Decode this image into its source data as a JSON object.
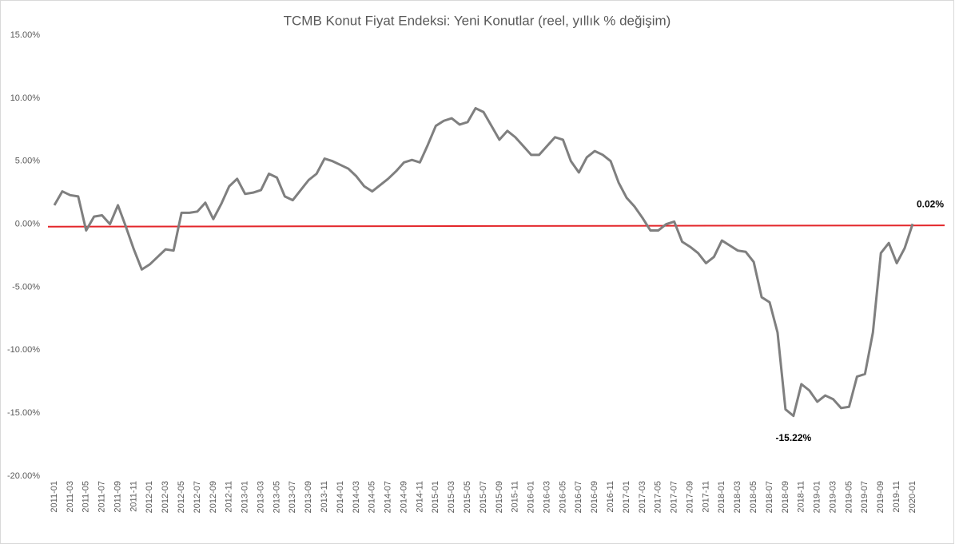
{
  "chart_data": {
    "type": "line",
    "title": "TCMB Konut Fiyat Endeksi: Yeni Konutlar (reel, yıllık % değişim)",
    "categories": [
      "2011-01",
      null,
      "2011-03",
      null,
      "2011-05",
      null,
      "2011-07",
      null,
      "2011-09",
      null,
      "2011-11",
      null,
      "2012-01",
      null,
      "2012-03",
      null,
      "2012-05",
      null,
      "2012-07",
      null,
      "2012-09",
      null,
      "2012-11",
      null,
      "2013-01",
      null,
      "2013-03",
      null,
      "2013-05",
      null,
      "2013-07",
      null,
      "2013-09",
      null,
      "2013-11",
      null,
      "2014-01",
      null,
      "2014-03",
      null,
      "2014-05",
      null,
      "2014-07",
      null,
      "2014-09",
      null,
      "2014-11",
      null,
      "2015-01",
      null,
      "2015-03",
      null,
      "2015-05",
      null,
      "2015-07",
      null,
      "2015-09",
      null,
      "2015-11",
      null,
      "2016-01",
      null,
      "2016-03",
      null,
      "2016-05",
      null,
      "2016-07",
      null,
      "2016-09",
      null,
      "2016-11",
      null,
      "2017-01",
      null,
      "2017-03",
      null,
      "2017-05",
      null,
      "2017-07",
      null,
      "2017-09",
      null,
      "2017-11",
      null,
      "2018-01",
      null,
      "2018-03",
      null,
      "2018-05",
      null,
      "2018-07",
      null,
      "2018-09",
      null,
      "2018-11",
      null,
      "2019-01",
      null,
      "2019-03",
      null,
      "2019-05",
      null,
      "2019-07",
      null,
      "2019-09",
      null,
      "2019-11",
      null,
      "2020-01"
    ],
    "series": [
      {
        "color": "#7f7f7f",
        "values": [
          1.5,
          2.6,
          2.3,
          2.2,
          -0.5,
          0.6,
          0.7,
          0.0,
          1.5,
          -0.2,
          -2.0,
          -3.6,
          -3.2,
          -2.6,
          -2.0,
          -2.1,
          0.9,
          0.9,
          1.0,
          1.7,
          0.4,
          1.6,
          3.0,
          3.6,
          2.4,
          2.5,
          2.7,
          4.0,
          3.7,
          2.2,
          1.9,
          2.7,
          3.5,
          4.0,
          5.2,
          5.0,
          4.7,
          4.4,
          3.8,
          3.0,
          2.6,
          3.1,
          3.6,
          4.2,
          4.9,
          5.1,
          4.9,
          6.3,
          7.8,
          8.2,
          8.4,
          7.9,
          8.1,
          9.2,
          8.9,
          7.8,
          6.7,
          7.4,
          6.9,
          6.2,
          5.5,
          5.5,
          6.2,
          6.9,
          6.7,
          5.0,
          4.1,
          5.3,
          5.8,
          5.5,
          5.0,
          3.3,
          2.1,
          1.4,
          0.5,
          -0.5,
          -0.5,
          0.0,
          0.2,
          -1.4,
          -1.8,
          -2.3,
          -3.1,
          -2.6,
          -1.3,
          -1.7,
          -2.1,
          -2.2,
          -3.0,
          -5.8,
          -6.2,
          -8.6,
          -14.7,
          -15.22,
          -12.7,
          -13.2,
          -14.1,
          -13.6,
          -13.9,
          -14.6,
          -14.5,
          -12.1,
          -11.9,
          -8.6,
          -2.3,
          -1.5,
          -3.1,
          -1.9,
          0.02
        ],
        "value_labels": [
          null,
          null,
          null,
          null,
          null,
          null,
          null,
          null,
          null,
          null,
          null,
          null,
          null,
          null,
          null,
          null,
          null,
          null,
          null,
          null,
          null,
          null,
          null,
          null,
          null,
          null,
          null,
          null,
          null,
          null,
          null,
          null,
          null,
          null,
          null,
          null,
          null,
          null,
          null,
          null,
          null,
          null,
          null,
          null,
          null,
          null,
          null,
          null,
          null,
          null,
          null,
          null,
          null,
          null,
          null,
          null,
          null,
          null,
          null,
          null,
          null,
          null,
          null,
          null,
          null,
          null,
          null,
          null,
          null,
          null,
          null,
          null,
          null,
          null,
          null,
          null,
          null,
          null,
          null,
          null,
          null,
          null,
          null,
          null,
          null,
          null,
          null,
          null,
          null,
          null,
          null,
          null,
          null,
          "-15.22%",
          null,
          null,
          null,
          null,
          null,
          null,
          null,
          null,
          null,
          null,
          null,
          null,
          null,
          null,
          "0.02%"
        ]
      }
    ],
    "trend_line": {
      "color": "#e3262a",
      "values": [
        -0.2,
        -0.1
      ]
    },
    "ylim": [
      -20,
      15
    ],
    "yticks": [
      {
        "value": -20,
        "label": "-20.00%"
      },
      {
        "value": -15,
        "label": "-15.00%"
      },
      {
        "value": -10,
        "label": "-10.00%"
      },
      {
        "value": -5,
        "label": "-5.00%"
      },
      {
        "value": 0,
        "label": "0.00%"
      },
      {
        "value": 5,
        "label": "5.00%"
      },
      {
        "value": 10,
        "label": "10.00%"
      },
      {
        "value": 15,
        "label": "15.00%"
      }
    ],
    "grid": false
  }
}
